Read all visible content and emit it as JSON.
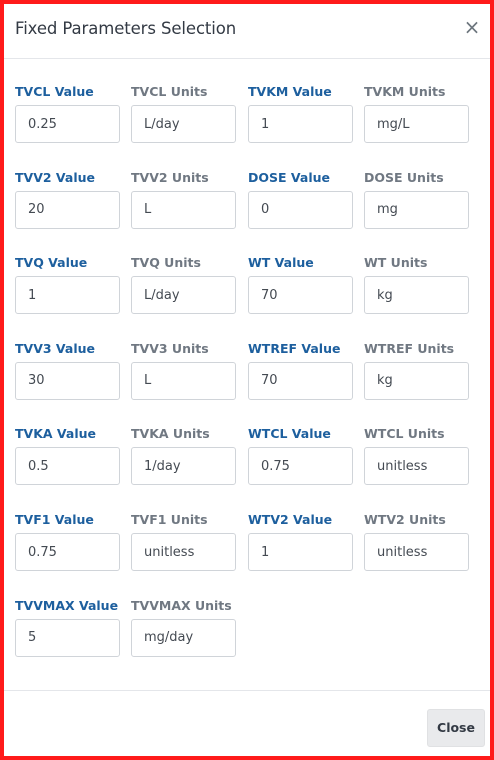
{
  "modal": {
    "title": "Fixed Parameters Selection",
    "close_icon": "×",
    "close_button_label": "Close"
  },
  "fields": [
    [
      {
        "value_label": "TVCL Value",
        "value": "0.25",
        "units_label": "TVCL Units",
        "units": "L/day"
      },
      {
        "value_label": "TVKM Value",
        "value": "1",
        "units_label": "TVKM Units",
        "units": "mg/L"
      }
    ],
    [
      {
        "value_label": "TVV2 Value",
        "value": "20",
        "units_label": "TVV2 Units",
        "units": "L"
      },
      {
        "value_label": "DOSE Value",
        "value": "0",
        "units_label": "DOSE Units",
        "units": "mg"
      }
    ],
    [
      {
        "value_label": "TVQ Value",
        "value": "1",
        "units_label": "TVQ Units",
        "units": "L/day"
      },
      {
        "value_label": "WT Value",
        "value": "70",
        "units_label": "WT Units",
        "units": "kg"
      }
    ],
    [
      {
        "value_label": "TVV3 Value",
        "value": "30",
        "units_label": "TVV3 Units",
        "units": "L"
      },
      {
        "value_label": "WTREF Value",
        "value": "70",
        "units_label": "WTREF Units",
        "units": "kg"
      }
    ],
    [
      {
        "value_label": "TVKA Value",
        "value": "0.5",
        "units_label": "TVKA Units",
        "units": "1/day"
      },
      {
        "value_label": "WTCL Value",
        "value": "0.75",
        "units_label": "WTCL Units",
        "units": "unitless"
      }
    ],
    [
      {
        "value_label": "TVF1 Value",
        "value": "0.75",
        "units_label": "TVF1 Units",
        "units": "unitless"
      },
      {
        "value_label": "WTV2 Value",
        "value": "1",
        "units_label": "WTV2 Units",
        "units": "unitless"
      }
    ],
    [
      {
        "value_label": "TVVMAX Value",
        "value": "5",
        "units_label": "TVVMAX Units",
        "units": "mg/day"
      }
    ]
  ]
}
